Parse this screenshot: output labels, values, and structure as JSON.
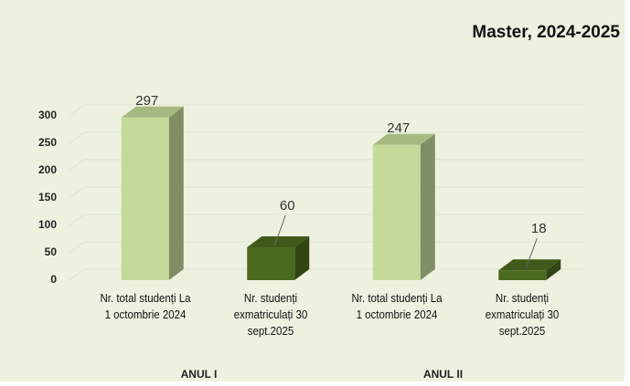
{
  "chart_data": {
    "type": "bar3d",
    "title": "Master, 2024-2025",
    "categories": [
      "Nr. total studenți La\n1 octombrie 2024",
      "Nr. studenți\nexmatriculați 30\nsept.2025",
      "Nr. total studenți La\n1 octombrie 2024",
      "Nr. studenți\nexmatriculați 30\nsept.2025"
    ],
    "values": [
      297,
      60,
      247,
      18
    ],
    "colors": [
      "#c4da98",
      "#4b6a1e",
      "#c4da98",
      "#4b6a1e"
    ],
    "group_labels": [
      "ANUL I",
      "ANUL II"
    ],
    "ylim": [
      0,
      300
    ],
    "yticks": [
      0,
      50,
      100,
      150,
      200,
      250,
      300
    ],
    "grid": true
  }
}
